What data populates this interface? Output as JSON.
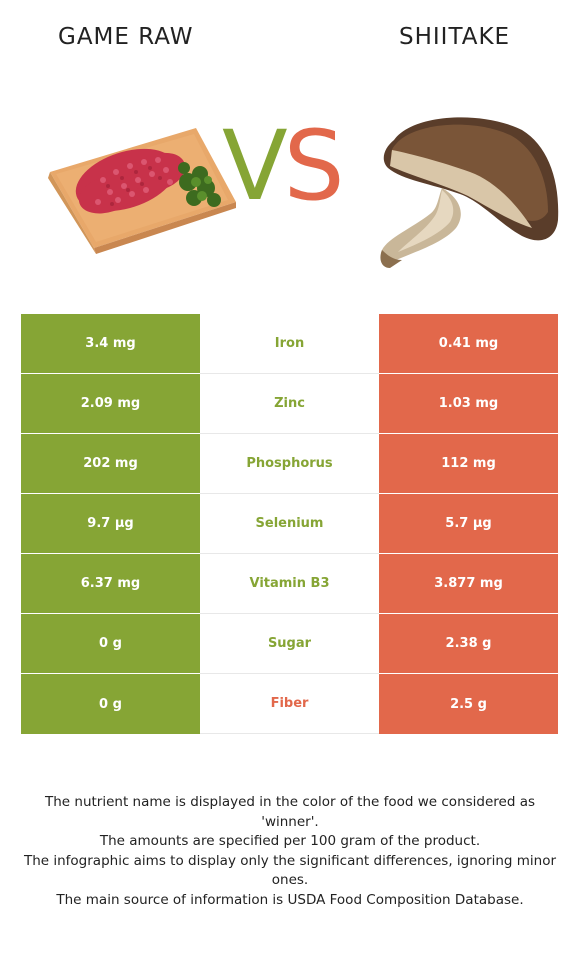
{
  "header": {
    "left_title": "GAME RAW",
    "right_title": "SHIITAKE",
    "vs_v": "V",
    "vs_s": "S"
  },
  "colors": {
    "left_food": "#86a535",
    "right_food": "#e2684b"
  },
  "rows": [
    {
      "left": "3.4 mg",
      "nutrient": "Iron",
      "right": "0.41 mg",
      "winner": "left"
    },
    {
      "left": "2.09 mg",
      "nutrient": "Zinc",
      "right": "1.03 mg",
      "winner": "left"
    },
    {
      "left": "202 mg",
      "nutrient": "Phosphorus",
      "right": "112 mg",
      "winner": "left"
    },
    {
      "left": "9.7 µg",
      "nutrient": "Selenium",
      "right": "5.7 µg",
      "winner": "left"
    },
    {
      "left": "6.37 mg",
      "nutrient": "Vitamin B3",
      "right": "3.877 mg",
      "winner": "left"
    },
    {
      "left": "0 g",
      "nutrient": "Sugar",
      "right": "2.38 g",
      "winner": "left"
    },
    {
      "left": "0 g",
      "nutrient": "Fiber",
      "right": "2.5 g",
      "winner": "right"
    }
  ],
  "footer": {
    "line1": "The nutrient name is displayed in the color of the food we considered as 'winner'.",
    "line2": "The amounts are specified per 100 gram of the product.",
    "line3": "The infographic aims to display only the significant differences, ignoring minor ones.",
    "line4": "The main source of information is USDA Food Composition Database."
  }
}
